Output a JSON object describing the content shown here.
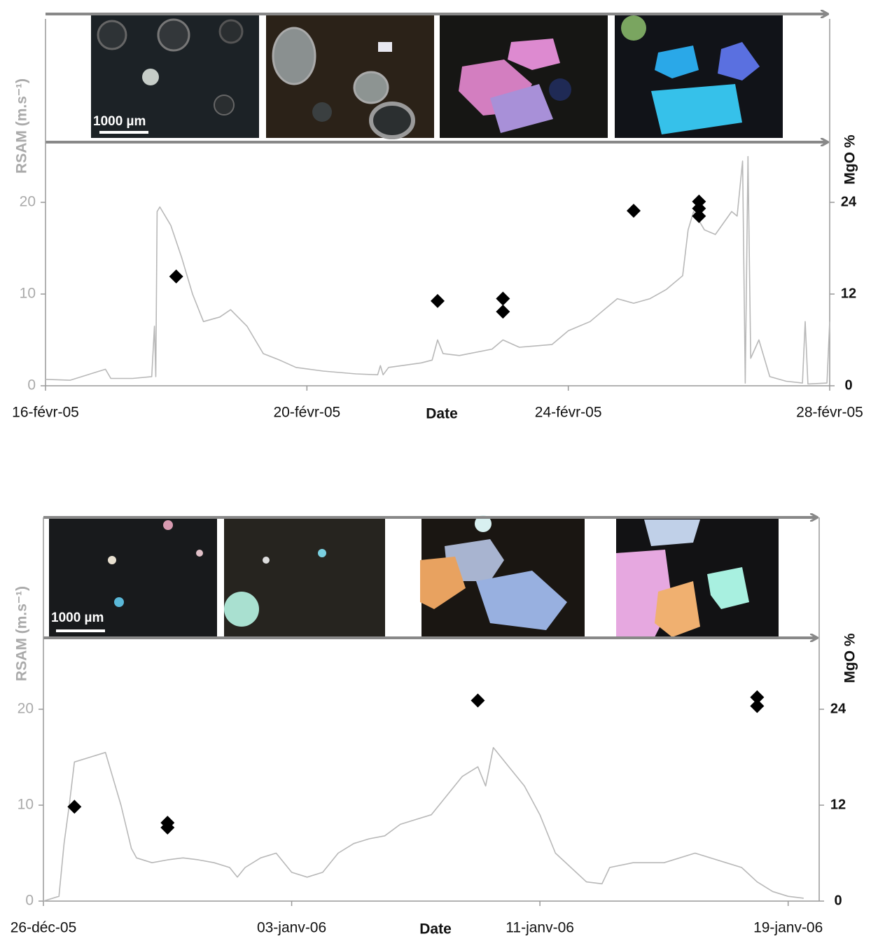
{
  "chart_data": [
    {
      "type": "line",
      "x_label": "Date",
      "y_label": "RSAM (m.s⁻¹)",
      "y2_label": "MgO %",
      "scale_bar_label": "1000 µm",
      "xlim": [
        "2005-02-16",
        "2005-02-28"
      ],
      "xticks": [
        {
          "value": "2005-02-16",
          "label": "16-févr-05"
        },
        {
          "value": "2005-02-20",
          "label": "20-févr-05"
        },
        {
          "value": "2005-02-24",
          "label": "24-févr-05"
        },
        {
          "value": "2005-02-28",
          "label": "28-févr-05"
        }
      ],
      "ylim": [
        0,
        40
      ],
      "yticks": [
        0,
        10,
        20
      ],
      "y2lim": [
        0,
        48
      ],
      "y2ticks": [
        0,
        12,
        24
      ],
      "series": [
        {
          "type": "line",
          "color": "#b8b8b8",
          "x": [
            "2005-02-16T00:00",
            "2005-02-16T09:00",
            "2005-02-16T22:00",
            "2005-02-17T00:00",
            "2005-02-17T08:00",
            "2005-02-17T15:00",
            "2005-02-17T16:00",
            "2005-02-17T16:30",
            "2005-02-17T17:00",
            "2005-02-17T18:00",
            "2005-02-17T22:00",
            "2005-02-18T02:00",
            "2005-02-18T06:00",
            "2005-02-18T10:00",
            "2005-02-18T16:00",
            "2005-02-18T20:00",
            "2005-02-19T02:00",
            "2005-02-19T08:00",
            "2005-02-19T14:00",
            "2005-02-19T20:00",
            "2005-02-20T06:00",
            "2005-02-20T18:00",
            "2005-02-21T02:00",
            "2005-02-21T03:00",
            "2005-02-21T04:00",
            "2005-02-21T06:00",
            "2005-02-21T18:00",
            "2005-02-21T22:00",
            "2005-02-22T00:00",
            "2005-02-22T02:00",
            "2005-02-22T08:00",
            "2005-02-22T20:00",
            "2005-02-23T00:00",
            "2005-02-23T06:00",
            "2005-02-23T18:00",
            "2005-02-24T00:00",
            "2005-02-24T08:00",
            "2005-02-24T12:00",
            "2005-02-24T18:00",
            "2005-02-25T00:00",
            "2005-02-25T06:00",
            "2005-02-25T12:00",
            "2005-02-25T18:00",
            "2005-02-25T20:00",
            "2005-02-25T22:00",
            "2005-02-26T02:00",
            "2005-02-26T06:00",
            "2005-02-26T12:00",
            "2005-02-26T14:00",
            "2005-02-26T16:00",
            "2005-02-26T17:00",
            "2005-02-26T18:00",
            "2005-02-26T19:00",
            "2005-02-26T22:00",
            "2005-02-27T02:00",
            "2005-02-27T08:00",
            "2005-02-27T14:00",
            "2005-02-27T15:00",
            "2005-02-27T16:00",
            "2005-02-27T23:00",
            "2005-02-28T00:00"
          ],
          "values": [
            0.7,
            0.6,
            1.8,
            0.8,
            0.8,
            1.0,
            6.5,
            1.0,
            19,
            19.5,
            17.5,
            14,
            10,
            7,
            7.5,
            8.3,
            6.5,
            3.5,
            2.8,
            2,
            1.6,
            1.3,
            1.2,
            2.2,
            1.2,
            2.0,
            2.5,
            2.8,
            5.0,
            3.5,
            3.3,
            4.0,
            5.0,
            4.2,
            4.5,
            6,
            7,
            8,
            9.5,
            9,
            9.5,
            10.5,
            12,
            17,
            19,
            17,
            16.5,
            19,
            18.5,
            24.5,
            0.3,
            25,
            3,
            5,
            1,
            0.5,
            0.3,
            7,
            0.2,
            0.3,
            7
          ]
        },
        {
          "type": "scatter",
          "axis": "y2",
          "marker": "diamond",
          "color": "#000000",
          "x": [
            "2005-02-18",
            "2005-02-22",
            "2005-02-23",
            "2005-02-23",
            "2005-02-25",
            "2005-02-26",
            "2005-02-26",
            "2005-02-26"
          ],
          "values": [
            14.3,
            11.1,
            11.4,
            9.7,
            22.9,
            24.1,
            23.2,
            22.2
          ]
        }
      ]
    },
    {
      "type": "line",
      "x_label": "Date",
      "y_label": "RSAM (m.s⁻¹)",
      "y2_label": "MgO %",
      "scale_bar_label": "1000 µm",
      "xlim": [
        "2005-12-26",
        "2006-01-20"
      ],
      "xticks": [
        {
          "value": "2005-12-26",
          "label": "26-déc-05"
        },
        {
          "value": "2006-01-03",
          "label": "03-janv-06"
        },
        {
          "value": "2006-01-11",
          "label": "11-janv-06"
        },
        {
          "value": "2006-01-19",
          "label": "19-janv-06"
        }
      ],
      "ylim": [
        0,
        40
      ],
      "yticks": [
        0,
        10,
        20
      ],
      "y2lim": [
        0,
        48
      ],
      "y2ticks": [
        0,
        12,
        24
      ],
      "series": [
        {
          "type": "line",
          "color": "#b8b8b8",
          "x": [
            "2005-12-26T00:00",
            "2005-12-26T12:00",
            "2005-12-26T16:00",
            "2005-12-26T20:00",
            "2005-12-27T00:00",
            "2005-12-27T12:00",
            "2005-12-28T00:00",
            "2005-12-28T12:00",
            "2005-12-28T20:00",
            "2005-12-29T00:00",
            "2005-12-29T12:00",
            "2005-12-30T00:00",
            "2005-12-30T12:00",
            "2005-12-31T00:00",
            "2005-12-31T12:00",
            "2006-01-01T00:00",
            "2006-01-01T06:00",
            "2006-01-01T12:00",
            "2006-01-02T00:00",
            "2006-01-02T12:00",
            "2006-01-03T00:00",
            "2006-01-03T12:00",
            "2006-01-04T00:00",
            "2006-01-04T12:00",
            "2006-01-05T00:00",
            "2006-01-05T12:00",
            "2006-01-06T00:00",
            "2006-01-06T12:00",
            "2006-01-07T00:00",
            "2006-01-07T12:00",
            "2006-01-08T00:00",
            "2006-01-08T12:00",
            "2006-01-09T00:00",
            "2006-01-09T06:00",
            "2006-01-09T12:00",
            "2006-01-10T00:00",
            "2006-01-10T12:00",
            "2006-01-11T00:00",
            "2006-01-11T12:00",
            "2006-01-12T00:00",
            "2006-01-12T12:00",
            "2006-01-13T00:00",
            "2006-01-13T06:00",
            "2006-01-14T00:00",
            "2006-01-15T00:00",
            "2006-01-16T00:00",
            "2006-01-17T00:00",
            "2006-01-17T12:00",
            "2006-01-18T00:00",
            "2006-01-18T12:00",
            "2006-01-19T00:00",
            "2006-01-19T12:00"
          ],
          "values": [
            0,
            0.5,
            6,
            10,
            14.5,
            15,
            15.5,
            10,
            5.5,
            4.5,
            4,
            4.3,
            4.5,
            4.3,
            4,
            3.5,
            2.5,
            3.5,
            4.5,
            5,
            3,
            2.5,
            3,
            5,
            6,
            6.5,
            6.8,
            8,
            8.5,
            9,
            11,
            13,
            14,
            12,
            16,
            14,
            12,
            9,
            5,
            3.5,
            2,
            1.8,
            3.5,
            4,
            4,
            5,
            4,
            3.5,
            2,
            1,
            0.5,
            0.3
          ]
        },
        {
          "type": "scatter",
          "axis": "y2",
          "marker": "diamond",
          "color": "#000000",
          "x": [
            "2005-12-27",
            "2005-12-30",
            "2005-12-30",
            "2006-01-09",
            "2006-01-18",
            "2006-01-18"
          ],
          "values": [
            11.8,
            9.8,
            9.2,
            25.1,
            25.5,
            24.4
          ]
        }
      ]
    }
  ]
}
